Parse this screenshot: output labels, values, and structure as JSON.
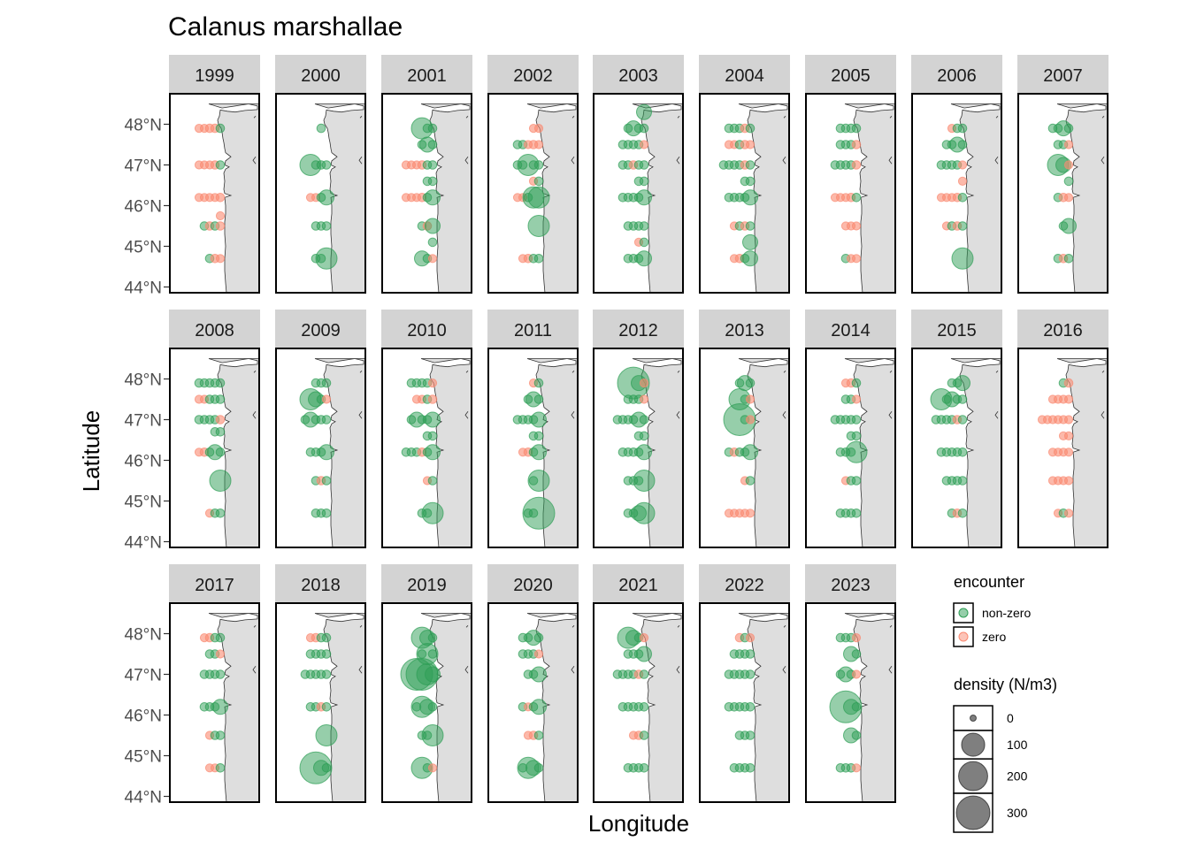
{
  "chart_data": {
    "type": "scatter",
    "title": "Calanus marshallae",
    "xlabel": "Longitude",
    "ylabel": "Latitude",
    "ylim": [
      43.9,
      48.7
    ],
    "yticks": [
      44,
      45,
      46,
      47,
      48
    ],
    "ytick_labels": [
      "44°N",
      "45°N",
      "46°N",
      "47°N",
      "48°N"
    ],
    "grid": false,
    "legend_position": "right",
    "colors": {
      "non_zero": "#2e9e55",
      "zero": "#fa8a72",
      "land": "#dedede",
      "strip": "#d3d3d3"
    },
    "legend": {
      "encounter_title": "encounter",
      "encounter_items": [
        {
          "label": "non-zero",
          "key": "non_zero"
        },
        {
          "label": "zero",
          "key": "zero"
        }
      ],
      "density_title": "density (N/m3)",
      "density_items": [
        {
          "label": "0",
          "value": 0
        },
        {
          "label": "100",
          "value": 100
        },
        {
          "label": "200",
          "value": 200
        },
        {
          "label": "300",
          "value": 300
        }
      ]
    },
    "panels": [
      {
        "year": "1999",
        "lines": [
          [
            47.9,
            "zzwwn"
          ],
          [
            47.0,
            "zzzwn"
          ],
          [
            46.2,
            "zzzzw"
          ],
          [
            45.75,
            "...z"
          ],
          [
            45.5,
            "nwnw"
          ],
          [
            44.7,
            "nwz"
          ]
        ]
      },
      {
        "year": "2000",
        "lines": [
          [
            47.9,
            "nm"
          ],
          [
            47.0,
            "Lnnn"
          ],
          [
            46.2,
            "zznM"
          ],
          [
            45.5,
            "nnn"
          ],
          [
            44.7,
            "nnL"
          ]
        ]
      },
      {
        "year": "2001",
        "lines": [
          [
            47.9,
            "Lnn"
          ],
          [
            47.5,
            "nMn"
          ],
          [
            47.0,
            "zzzwnn"
          ],
          [
            46.6,
            "nn"
          ],
          [
            46.2,
            "zzzwnM"
          ],
          [
            45.5,
            "nwM"
          ],
          [
            45.1,
            ".n"
          ],
          [
            44.7,
            "Mnz"
          ]
        ]
      },
      {
        "year": "2002",
        "lines": [
          [
            47.9,
            "zz"
          ],
          [
            47.5,
            "nnzwz"
          ],
          [
            47.0,
            "nnLnn"
          ],
          [
            46.6,
            "zn"
          ],
          [
            46.2,
            "zznLL"
          ],
          [
            45.5,
            "..L"
          ],
          [
            44.7,
            "zwnn"
          ]
        ]
      },
      {
        "year": "2003",
        "lines": [
          [
            48.3,
            "M"
          ],
          [
            47.9,
            "nMnn"
          ],
          [
            47.5,
            "nnnnz"
          ],
          [
            47.0,
            "nnwnn"
          ],
          [
            46.6,
            "nn"
          ],
          [
            46.2,
            "nnnnM"
          ],
          [
            45.5,
            "nnnn"
          ],
          [
            45.1,
            ".zn"
          ],
          [
            44.7,
            "nnnM"
          ]
        ]
      },
      {
        "year": "2004",
        "lines": [
          [
            47.9,
            "nnnwn"
          ],
          [
            47.5,
            "zznwz"
          ],
          [
            47.0,
            "nnnnwn"
          ],
          [
            46.6,
            "nn"
          ],
          [
            46.2,
            "nnnnM"
          ],
          [
            45.5,
            "znwn"
          ],
          [
            45.1,
            "..M"
          ],
          [
            44.7,
            "zwnM"
          ]
        ]
      },
      {
        "year": "2005",
        "lines": [
          [
            47.9,
            "nnnn"
          ],
          [
            47.5,
            "nnnw"
          ],
          [
            47.0,
            "nnnnw"
          ],
          [
            46.2,
            "zzzwn"
          ],
          [
            45.5,
            "..zzz"
          ],
          [
            44.7,
            "nzz"
          ]
        ]
      },
      {
        "year": "2006",
        "lines": [
          [
            47.9,
            "znn"
          ],
          [
            47.5,
            "nnMn"
          ],
          [
            47.0,
            "nnnnz"
          ],
          [
            46.6,
            ".z"
          ],
          [
            46.2,
            "zzzwn"
          ],
          [
            45.5,
            "znwn"
          ],
          [
            44.7,
            "..L"
          ]
        ]
      },
      {
        "year": "2007",
        "lines": [
          [
            47.9,
            "nnMn"
          ],
          [
            47.5,
            "nnz"
          ],
          [
            47.0,
            "LMz"
          ],
          [
            46.6,
            ".n"
          ],
          [
            46.2,
            "nwz"
          ],
          [
            45.5,
            ".nM"
          ],
          [
            44.7,
            "nwn"
          ]
        ]
      },
      {
        "year": "2008",
        "lines": [
          [
            47.9,
            "nnnnn"
          ],
          [
            47.5,
            "zznnn"
          ],
          [
            47.0,
            "nnnnw"
          ],
          [
            46.7,
            "nn"
          ],
          [
            46.2,
            "zwnMn"
          ],
          [
            45.5,
            "..L"
          ],
          [
            44.7,
            "znn"
          ]
        ]
      },
      {
        "year": "2009",
        "lines": [
          [
            47.9,
            "nnn"
          ],
          [
            47.5,
            "LMnz"
          ],
          [
            47.0,
            "nMnnn"
          ],
          [
            46.2,
            "nnnM"
          ],
          [
            45.5,
            "nwn"
          ],
          [
            44.7,
            "nnn"
          ]
        ]
      },
      {
        "year": "2010",
        "lines": [
          [
            47.9,
            "nnnnz"
          ],
          [
            47.5,
            "zznw"
          ],
          [
            47.0,
            "nMnnM"
          ],
          [
            46.6,
            "nn"
          ],
          [
            46.2,
            "nnnwnM"
          ],
          [
            45.5,
            "zn"
          ],
          [
            44.7,
            "nnL"
          ]
        ]
      },
      {
        "year": "2011",
        "lines": [
          [
            47.9,
            "zn"
          ],
          [
            47.5,
            "nMn"
          ],
          [
            47.0,
            "nnnnM"
          ],
          [
            46.6,
            "nn"
          ],
          [
            46.2,
            "zwnM"
          ],
          [
            45.5,
            ".nL"
          ],
          [
            44.7,
            "nnX"
          ]
        ]
      },
      {
        "year": "2012",
        "lines": [
          [
            47.9,
            "XMz"
          ],
          [
            47.5,
            "nnnz"
          ],
          [
            47.0,
            "nnnnMn"
          ],
          [
            46.6,
            "nn"
          ],
          [
            46.2,
            "nnnnM"
          ],
          [
            45.5,
            "nnnL"
          ],
          [
            44.7,
            "nnML"
          ]
        ]
      },
      {
        "year": "2013",
        "lines": [
          [
            47.9,
            "nMn"
          ],
          [
            47.5,
            "Lnz"
          ],
          [
            47.0,
            "Xnz"
          ],
          [
            46.2,
            "nwnnM"
          ],
          [
            45.5,
            "zn"
          ],
          [
            44.7,
            "zzzzz"
          ]
        ]
      },
      {
        "year": "2014",
        "lines": [
          [
            47.9,
            "zwn"
          ],
          [
            47.5,
            "nnz"
          ],
          [
            47.0,
            "nnnnn"
          ],
          [
            46.6,
            "nn"
          ],
          [
            46.2,
            "nnnL"
          ],
          [
            45.5,
            "znn"
          ],
          [
            44.7,
            "nnnn"
          ]
        ]
      },
      {
        "year": "2015",
        "lines": [
          [
            47.9,
            "nnM"
          ],
          [
            47.5,
            "LnMnn"
          ],
          [
            47.0,
            "nnnnwn"
          ],
          [
            46.2,
            "nnnnn"
          ],
          [
            45.5,
            "nnnn"
          ],
          [
            44.7,
            "nwn"
          ]
        ]
      },
      {
        "year": "2016",
        "lines": [
          [
            47.9,
            "nw"
          ],
          [
            47.5,
            "zzzz"
          ],
          [
            47.0,
            "zzzzzz"
          ],
          [
            46.6,
            "zz"
          ],
          [
            46.2,
            "zzzz"
          ],
          [
            45.5,
            "zzzz"
          ],
          [
            44.7,
            "znz"
          ]
        ]
      },
      {
        "year": "2017",
        "lines": [
          [
            47.9,
            "zwnn"
          ],
          [
            47.5,
            "nnz"
          ],
          [
            47.0,
            "nnnn"
          ],
          [
            46.2,
            "nnnM"
          ],
          [
            45.5,
            "znn"
          ],
          [
            44.7,
            "zzn"
          ]
        ]
      },
      {
        "year": "2018",
        "lines": [
          [
            47.9,
            "zwnn"
          ],
          [
            47.5,
            "nnnn"
          ],
          [
            47.0,
            "nnnnn"
          ],
          [
            46.2,
            "nnwn"
          ],
          [
            45.5,
            ".L"
          ],
          [
            44.7,
            "XMn"
          ]
        ]
      },
      {
        "year": "2019",
        "lines": [
          [
            47.9,
            "LMn"
          ],
          [
            47.5,
            "nLn"
          ],
          [
            47.0,
            "XXLM"
          ],
          [
            46.2,
            "nLMn"
          ],
          [
            45.5,
            "nnL"
          ],
          [
            44.7,
            "Lnz"
          ]
        ]
      },
      {
        "year": "2020",
        "lines": [
          [
            47.9,
            "nnMn"
          ],
          [
            47.5,
            "nnnz"
          ],
          [
            47.0,
            "nnM"
          ],
          [
            46.2,
            "nznM"
          ],
          [
            45.5,
            "zwn"
          ],
          [
            44.7,
            "nLMn"
          ]
        ]
      },
      {
        "year": "2021",
        "lines": [
          [
            47.9,
            "LMnz"
          ],
          [
            47.5,
            "nnnM"
          ],
          [
            47.0,
            "nnnnwn"
          ],
          [
            46.2,
            "nnnnn"
          ],
          [
            45.5,
            "zwn"
          ],
          [
            44.7,
            "nnnn"
          ]
        ]
      },
      {
        "year": "2022",
        "lines": [
          [
            47.9,
            "wnz"
          ],
          [
            47.5,
            "nnnn"
          ],
          [
            47.0,
            "nnnnn"
          ],
          [
            46.2,
            "nnnnn"
          ],
          [
            45.5,
            "nnn"
          ],
          [
            44.7,
            "nnnn"
          ]
        ]
      },
      {
        "year": "2023",
        "lines": [
          [
            47.9,
            "nnnz"
          ],
          [
            47.5,
            "Mn"
          ],
          [
            47.0,
            "nMnz"
          ],
          [
            46.2,
            "XMn"
          ],
          [
            45.5,
            "Mn"
          ],
          [
            44.7,
            "nnnz"
          ]
        ]
      }
    ]
  }
}
